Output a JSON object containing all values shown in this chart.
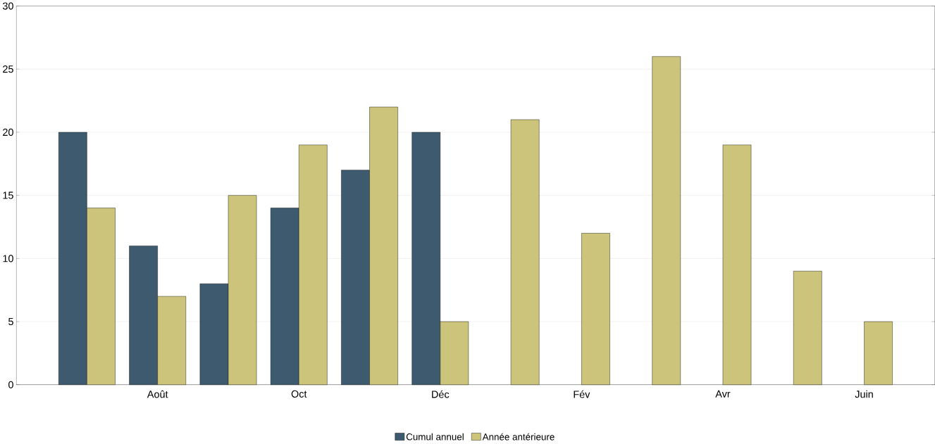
{
  "chart_data": {
    "type": "bar",
    "categories": [
      null,
      "Août",
      null,
      "Oct",
      null,
      "Déc",
      null,
      "Fév",
      null,
      "Avr",
      null,
      "Juin"
    ],
    "series": [
      {
        "name": "Cumul annuel",
        "color": "#3d5a6e",
        "values": [
          20,
          11,
          8,
          14,
          17,
          20,
          null,
          null,
          null,
          null,
          null,
          null
        ]
      },
      {
        "name": "Année antérieure",
        "color": "#ccc47a",
        "values": [
          14,
          7,
          15,
          19,
          22,
          5,
          21,
          12,
          26,
          19,
          9,
          5
        ]
      }
    ],
    "ylim": [
      0,
      30
    ],
    "yticks": [
      0,
      5,
      10,
      15,
      20,
      25,
      30
    ],
    "grid": "y",
    "legend": "bottom"
  }
}
